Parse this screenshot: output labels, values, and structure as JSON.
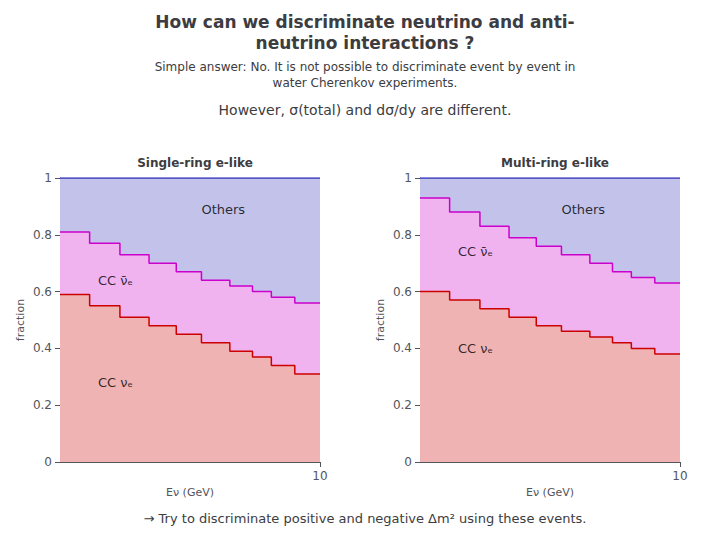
{
  "title": "How can we discriminate neutrino and anti-\nneutrino interactions ?",
  "subtitle": "Simple answer: No. It is not possible to discriminate event by event in\nwater Cherenkov experiments.",
  "annotations": [
    "However, σ(total) and dσ/dy are different.",
    "→ Try to discriminate positive and negative Δm² using these events."
  ],
  "chart_data": [
    {
      "type": "step",
      "title": "Single-ring e-like",
      "xlabel": "Eν (GeV)",
      "ylabel": "fraction",
      "log": "x",
      "grid": false,
      "bins": [
        1,
        1.3,
        1.7,
        2.2,
        2.8,
        3.5,
        4.5,
        5.5,
        6.5,
        8.0,
        10
      ],
      "series": [
        {
          "name": "CC νₑ",
          "color": "#cc0000",
          "values": [
            0.59,
            0.55,
            0.51,
            0.48,
            0.45,
            0.42,
            0.39,
            0.37,
            0.34,
            0.31
          ]
        },
        {
          "name": "CC ν̄ₑ",
          "color": "#cc00cc",
          "values": [
            0.81,
            0.77,
            0.73,
            0.7,
            0.67,
            0.64,
            0.62,
            0.6,
            0.58,
            0.56
          ]
        },
        {
          "name": "Others",
          "color": "#3333bb",
          "values": [
            1,
            1,
            1,
            1,
            1,
            1,
            1,
            1,
            1,
            1
          ]
        }
      ],
      "annotations": [
        {
          "text": "Others",
          "x": 3.5,
          "y": 0.89
        },
        {
          "text": "CC ν̄ₑ",
          "x": 1.4,
          "y": 0.64
        },
        {
          "text": "CC νₑ",
          "x": 1.4,
          "y": 0.28
        }
      ],
      "xlim": [
        1,
        10
      ],
      "xticks": [
        10
      ],
      "ylim": [
        0,
        1.0
      ],
      "yticks": [
        0,
        0.2,
        0.4,
        0.6,
        0.8,
        1
      ]
    },
    {
      "type": "step",
      "title": "Multi-ring e-like",
      "xlabel": "Eν (GeV)",
      "ylabel": "fraction",
      "log": "x",
      "grid": false,
      "bins": [
        1,
        1.3,
        1.7,
        2.2,
        2.8,
        3.5,
        4.5,
        5.5,
        6.5,
        8.0,
        10
      ],
      "series": [
        {
          "name": "CC νₑ",
          "color": "#cc0000",
          "values": [
            0.6,
            0.57,
            0.54,
            0.51,
            0.48,
            0.46,
            0.44,
            0.42,
            0.4,
            0.38
          ]
        },
        {
          "name": "CC ν̄ₑ",
          "color": "#cc00cc",
          "values": [
            0.93,
            0.88,
            0.83,
            0.79,
            0.76,
            0.73,
            0.7,
            0.67,
            0.65,
            0.63
          ]
        },
        {
          "name": "Others",
          "color": "#3333bb",
          "values": [
            1,
            1,
            1,
            1,
            1,
            1,
            1,
            1,
            1,
            1
          ]
        }
      ],
      "annotations": [
        {
          "text": "Others",
          "x": 3.5,
          "y": 0.89
        },
        {
          "text": "CC ν̄ₑ",
          "x": 1.4,
          "y": 0.74
        },
        {
          "text": "CC νₑ",
          "x": 1.4,
          "y": 0.4
        }
      ],
      "xlim": [
        1,
        10
      ],
      "xticks": [
        10
      ],
      "ylim": [
        0,
        1.0
      ],
      "yticks": [
        0,
        0.2,
        0.4,
        0.6,
        0.8,
        1
      ]
    }
  ]
}
